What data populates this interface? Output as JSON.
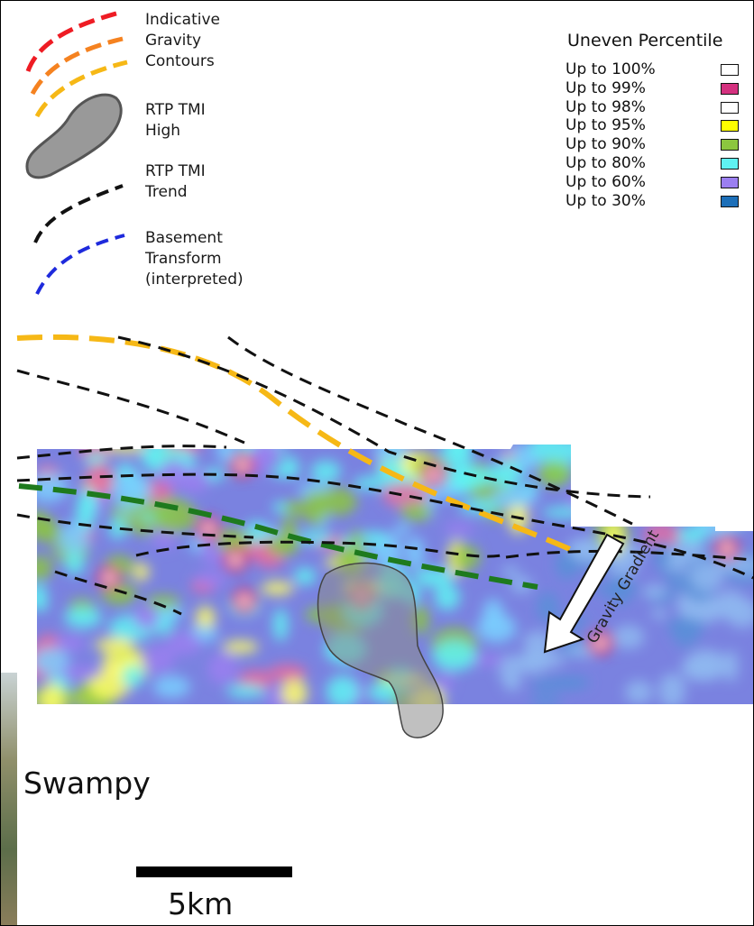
{
  "legend": {
    "gravity_contours": "Indicative Gravity Contours",
    "gravity_lines": [
      "Indicative",
      "Gravity",
      "Contours"
    ],
    "tmi_high_lines": [
      "RTP TMI",
      "High"
    ],
    "tmi_trend_lines": [
      "RTP TMI",
      "Trend"
    ],
    "basement_lines": [
      "Basement",
      "Transform",
      "(interpreted)"
    ]
  },
  "percentile_legend": {
    "title": "Uneven Percentile",
    "items": [
      {
        "label": "Up to 100%",
        "color": "#ffffff"
      },
      {
        "label": "Up to 99%",
        "color": "#d4317f"
      },
      {
        "label": "Up to 98%",
        "color": "#ffffff"
      },
      {
        "label": "Up to 95%",
        "color": "#ffff00"
      },
      {
        "label": "Up to 90%",
        "color": "#8cc63f"
      },
      {
        "label": "Up to 80%",
        "color": "#5ff2f2"
      },
      {
        "label": "Up to 60%",
        "color": "#9b7ff0"
      },
      {
        "label": "Up to 30%",
        "color": "#1d6fb8"
      }
    ]
  },
  "map": {
    "arrow_label": "Gravity Gradient",
    "place_label": "Swampy",
    "scale_label": "5km"
  },
  "colors": {
    "gravity_contour_red": "#ee1c24",
    "gravity_contour_orange": "#f58220",
    "gravity_contour_yellow": "#f6b816",
    "tmi_high_fill": "#999999",
    "tmi_trend": "#111111",
    "basement_transform": "#1e2adc",
    "green_contour": "#1e7a1e"
  }
}
